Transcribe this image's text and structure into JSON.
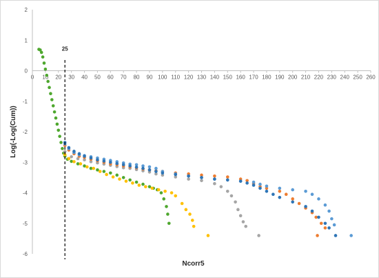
{
  "chart_data": {
    "type": "scatter",
    "title": "",
    "xlabel": "Ncorr5",
    "ylabel": "Log(-Log(Cum))",
    "xlim": [
      0,
      260
    ],
    "ylim": [
      -6,
      2
    ],
    "x_ticks": [
      0,
      10,
      20,
      30,
      40,
      50,
      60,
      70,
      80,
      90,
      100,
      110,
      120,
      130,
      140,
      150,
      160,
      170,
      180,
      190,
      200,
      210,
      220,
      230,
      240,
      250,
      260
    ],
    "y_ticks": [
      2,
      1,
      0,
      -1,
      -2,
      -3,
      -4,
      -5,
      -6
    ],
    "grid": false,
    "legend": "none",
    "annotation": {
      "text": "25",
      "x": 25,
      "line_style": "dashed vertical"
    },
    "series": [
      {
        "color": "#4ea72e",
        "points": [
          [
            5,
            0.7
          ],
          [
            6,
            0.68
          ],
          [
            7,
            0.6
          ],
          [
            8,
            0.45
          ],
          [
            9,
            0.25
          ],
          [
            10,
            0.05
          ],
          [
            11,
            -0.15
          ],
          [
            12,
            -0.35
          ],
          [
            13,
            -0.55
          ],
          [
            14,
            -0.75
          ],
          [
            15,
            -0.95
          ],
          [
            16,
            -1.15
          ],
          [
            17,
            -1.35
          ],
          [
            18,
            -1.55
          ],
          [
            19,
            -1.75
          ],
          [
            20,
            -1.95
          ],
          [
            21,
            -2.15
          ],
          [
            22,
            -2.35
          ],
          [
            23,
            -2.55
          ],
          [
            24,
            -2.7
          ],
          [
            25,
            -2.8
          ],
          [
            27,
            -2.9
          ],
          [
            30,
            -2.97
          ],
          [
            35,
            -3.05
          ],
          [
            40,
            -3.12
          ],
          [
            45,
            -3.2
          ],
          [
            50,
            -3.25
          ],
          [
            55,
            -3.3
          ],
          [
            60,
            -3.35
          ],
          [
            65,
            -3.42
          ],
          [
            70,
            -3.5
          ],
          [
            75,
            -3.58
          ],
          [
            80,
            -3.65
          ],
          [
            85,
            -3.72
          ],
          [
            90,
            -3.8
          ],
          [
            93,
            -3.85
          ],
          [
            96,
            -3.9
          ],
          [
            99,
            -4.0
          ],
          [
            101,
            -4.2
          ],
          [
            103,
            -4.45
          ],
          [
            104,
            -4.7
          ],
          [
            105,
            -5.0
          ]
        ]
      },
      {
        "color": "#ffc000",
        "points": [
          [
            25,
            -2.75
          ],
          [
            28,
            -2.88
          ],
          [
            32,
            -2.98
          ],
          [
            37,
            -3.05
          ],
          [
            42,
            -3.15
          ],
          [
            47,
            -3.2
          ],
          [
            52,
            -3.3
          ],
          [
            57,
            -3.4
          ],
          [
            62,
            -3.48
          ],
          [
            67,
            -3.55
          ],
          [
            72,
            -3.62
          ],
          [
            77,
            -3.68
          ],
          [
            82,
            -3.75
          ],
          [
            87,
            -3.8
          ],
          [
            92,
            -3.85
          ],
          [
            97,
            -3.9
          ],
          [
            102,
            -3.95
          ],
          [
            107,
            -4.0
          ],
          [
            110,
            -4.1
          ],
          [
            115,
            -4.35
          ],
          [
            118,
            -4.55
          ],
          [
            121,
            -4.7
          ],
          [
            123,
            -4.9
          ],
          [
            124,
            -5.1
          ],
          [
            135,
            -5.4
          ]
        ]
      },
      {
        "color": "#a5a5a5",
        "points": [
          [
            25,
            -2.65
          ],
          [
            30,
            -2.82
          ],
          [
            35,
            -2.88
          ],
          [
            40,
            -2.92
          ],
          [
            45,
            -2.98
          ],
          [
            50,
            -3.02
          ],
          [
            55,
            -3.06
          ],
          [
            60,
            -3.1
          ],
          [
            65,
            -3.14
          ],
          [
            70,
            -3.18
          ],
          [
            75,
            -3.2
          ],
          [
            80,
            -3.24
          ],
          [
            85,
            -3.28
          ],
          [
            90,
            -3.32
          ],
          [
            95,
            -3.38
          ],
          [
            100,
            -3.42
          ],
          [
            110,
            -3.48
          ],
          [
            120,
            -3.55
          ],
          [
            130,
            -3.6
          ],
          [
            140,
            -3.7
          ],
          [
            145,
            -3.8
          ],
          [
            150,
            -3.95
          ],
          [
            153,
            -4.1
          ],
          [
            156,
            -4.3
          ],
          [
            158,
            -4.55
          ],
          [
            160,
            -4.75
          ],
          [
            162,
            -4.95
          ],
          [
            164,
            -5.1
          ],
          [
            174,
            -5.4
          ]
        ]
      },
      {
        "color": "#ed7d31",
        "points": [
          [
            25,
            -2.45
          ],
          [
            28,
            -2.6
          ],
          [
            32,
            -2.72
          ],
          [
            36,
            -2.8
          ],
          [
            40,
            -2.84
          ],
          [
            45,
            -2.9
          ],
          [
            50,
            -2.95
          ],
          [
            55,
            -3.0
          ],
          [
            60,
            -3.05
          ],
          [
            65,
            -3.08
          ],
          [
            70,
            -3.12
          ],
          [
            75,
            -3.15
          ],
          [
            80,
            -3.18
          ],
          [
            85,
            -3.22
          ],
          [
            90,
            -3.25
          ],
          [
            95,
            -3.28
          ],
          [
            100,
            -3.3
          ],
          [
            110,
            -3.35
          ],
          [
            120,
            -3.38
          ],
          [
            130,
            -3.42
          ],
          [
            140,
            -3.45
          ],
          [
            150,
            -3.48
          ],
          [
            160,
            -3.55
          ],
          [
            165,
            -3.6
          ],
          [
            170,
            -3.7
          ],
          [
            175,
            -3.8
          ],
          [
            180,
            -3.85
          ],
          [
            190,
            -3.95
          ],
          [
            195,
            -4.05
          ],
          [
            200,
            -4.2
          ],
          [
            205,
            -4.35
          ],
          [
            210,
            -4.5
          ],
          [
            215,
            -4.65
          ],
          [
            218,
            -4.8
          ],
          [
            222,
            -5.0
          ],
          [
            225,
            -5.15
          ],
          [
            219,
            -5.4
          ]
        ]
      },
      {
        "color": "#5b9bd5",
        "points": [
          [
            25,
            -2.4
          ],
          [
            28,
            -2.55
          ],
          [
            32,
            -2.68
          ],
          [
            36,
            -2.75
          ],
          [
            40,
            -2.78
          ],
          [
            45,
            -2.82
          ],
          [
            50,
            -2.86
          ],
          [
            55,
            -2.9
          ],
          [
            60,
            -2.94
          ],
          [
            65,
            -2.98
          ],
          [
            70,
            -3.02
          ],
          [
            75,
            -3.06
          ],
          [
            80,
            -3.08
          ],
          [
            85,
            -3.12
          ],
          [
            90,
            -3.15
          ],
          [
            95,
            -3.2
          ],
          [
            100,
            -3.3
          ],
          [
            110,
            -3.38
          ],
          [
            120,
            -3.45
          ],
          [
            130,
            -3.5
          ],
          [
            140,
            -3.55
          ],
          [
            150,
            -3.58
          ],
          [
            160,
            -3.62
          ],
          [
            170,
            -3.65
          ],
          [
            175,
            -3.72
          ],
          [
            180,
            -3.78
          ],
          [
            190,
            -3.85
          ],
          [
            200,
            -3.9
          ],
          [
            210,
            -3.95
          ],
          [
            215,
            -4.05
          ],
          [
            220,
            -4.2
          ],
          [
            225,
            -4.4
          ],
          [
            228,
            -4.6
          ],
          [
            230,
            -4.85
          ],
          [
            232,
            -5.05
          ],
          [
            245,
            -5.4
          ]
        ]
      },
      {
        "color": "#2e75b6",
        "points": [
          [
            25,
            -2.35
          ],
          [
            28,
            -2.52
          ],
          [
            32,
            -2.64
          ],
          [
            36,
            -2.72
          ],
          [
            40,
            -2.8
          ],
          [
            45,
            -2.86
          ],
          [
            50,
            -2.92
          ],
          [
            55,
            -2.96
          ],
          [
            60,
            -3.0
          ],
          [
            65,
            -3.04
          ],
          [
            70,
            -3.08
          ],
          [
            75,
            -3.12
          ],
          [
            80,
            -3.16
          ],
          [
            85,
            -3.2
          ],
          [
            90,
            -3.25
          ],
          [
            95,
            -3.3
          ],
          [
            100,
            -3.35
          ],
          [
            110,
            -3.4
          ],
          [
            120,
            -3.45
          ],
          [
            130,
            -3.5
          ],
          [
            140,
            -3.55
          ],
          [
            150,
            -3.58
          ],
          [
            160,
            -3.62
          ],
          [
            165,
            -3.68
          ],
          [
            170,
            -3.75
          ],
          [
            175,
            -3.85
          ],
          [
            180,
            -3.95
          ],
          [
            185,
            -4.05
          ],
          [
            190,
            -4.15
          ],
          [
            200,
            -4.3
          ],
          [
            210,
            -4.45
          ],
          [
            215,
            -4.6
          ],
          [
            220,
            -4.8
          ],
          [
            225,
            -5.0
          ],
          [
            228,
            -5.15
          ],
          [
            233,
            -5.4
          ]
        ]
      }
    ]
  }
}
